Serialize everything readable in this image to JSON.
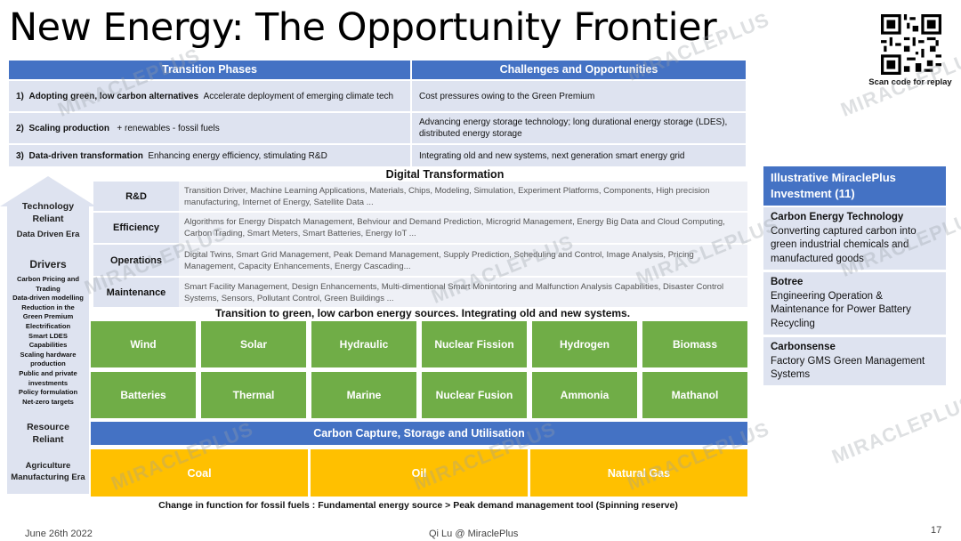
{
  "title": "New Energy: The Opportunity Frontier",
  "qr_caption": "Scan code for replay",
  "watermark": "MIRACLEPLUS",
  "phases_table": {
    "headers": [
      "Transition Phases",
      "Challenges and Opportunities"
    ],
    "rows": [
      {
        "num": "1)",
        "name": "Adopting green, low carbon alternatives",
        "desc": "Accelerate  deployment of emerging climate tech",
        "challenge": "Cost pressures owing to the Green Premium"
      },
      {
        "num": "2)",
        "name": "Scaling production",
        "desc": "+ renewables   - fossil fuels",
        "challenge": "Advancing energy storage technology; long durational energy storage (LDES), distributed energy storage"
      },
      {
        "num": "3)",
        "name": "Data-driven transformation",
        "desc": "Enhancing energy efficiency, stimulating R&D",
        "challenge": "Integrating old and new systems,    next generation smart energy grid"
      }
    ]
  },
  "digital": {
    "title": "Digital Transformation",
    "rows": [
      {
        "label": "R&D",
        "text": "Transition Driver,   Machine Learning Applications, Materials, Chips, Modeling, Simulation, Experiment Platforms, Components, High precision manufacturing, Internet of Energy, Satellite Data ..."
      },
      {
        "label": "Efficiency",
        "text": "Algorithms for Energy Dispatch Management, Behviour and Demand Prediction,    Microgrid Management,    Energy Big Data and Cloud Computing,    Carbon Trading,    Smart Meters,    Smart Batteries,    Energy IoT ..."
      },
      {
        "label": "Operations",
        "text": "Digital Twins,    Smart Grid Management, Peak Demand Management,    Supply Prediction,     Scheduling and Control,    Image Analysis, Pricing Management,      Capacity Enhancements,     Energy Cascading..."
      },
      {
        "label": "Maintenance",
        "text": "Smart Facility Management,    Design Enhancements,    Multi-dimentional Smart Monintoring and Malfunction Analysis Capabilities, Disaster Control Systems,    Sensors,    Pollutant Control, Green Buildings ..."
      }
    ]
  },
  "transition_caption": "Transition to green, low carbon energy sources. Integrating old and new systems.",
  "green_row1": [
    "Wind",
    "Solar",
    "Hydraulic",
    "Nuclear Fission",
    "Hydrogen",
    "Biomass"
  ],
  "green_row2": [
    "Batteries",
    "Thermal",
    "Marine",
    "Nuclear Fusion",
    "Ammonia",
    "Mathanol"
  ],
  "ccus": "Carbon Capture, Storage and Utilisation",
  "fossil": [
    "Coal",
    "Oil",
    "Natural Gas"
  ],
  "fossil_caption": "Change in function for fossil fuels : Fundamental energy source > Peak demand management tool (Spinning reserve)",
  "left_column": {
    "technology": [
      "Technology",
      "Reliant"
    ],
    "data_era": "Data Driven Era",
    "drivers_title": "Drivers",
    "drivers": [
      "Carbon Pricing and",
      "Trading",
      "Data-driven modelling",
      "Reduction in the",
      "Green Premium",
      "Electrification",
      "Smart LDES",
      "Capabilities",
      "Scaling hardware",
      "production",
      "Public and private",
      "investments",
      "Policy formulation",
      "Net-zero targets"
    ],
    "resource": [
      "Resource",
      "Reliant"
    ],
    "agri": [
      "Agriculture",
      "Manufacturing Era"
    ]
  },
  "investments": {
    "title": "Illustrative MiraclePlus Investment (11)",
    "items": [
      {
        "name": "Carbon Energy Technology",
        "desc": "Converting captured carbon into green industrial chemicals and manufactured goods"
      },
      {
        "name": "Botree",
        "desc": "Engineering Operation & Maintenance for Power Battery Recycling"
      },
      {
        "name": "Carbonsense",
        "desc": "Factory GMS Green Management Systems"
      }
    ]
  },
  "footer": {
    "date": "June 26th 2022",
    "author": "Qi Lu @ MiraclePlus",
    "page": "17"
  },
  "colors": {
    "blue": "#4472c4",
    "light": "#dee3f0",
    "green": "#70ad47",
    "gold": "#ffc000"
  }
}
